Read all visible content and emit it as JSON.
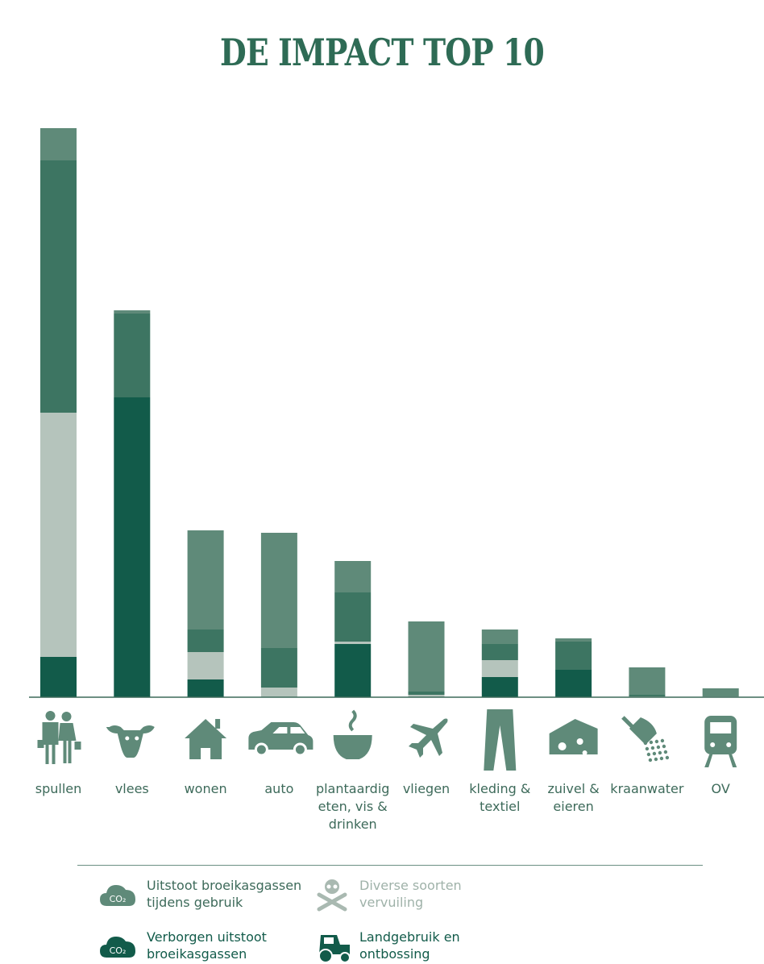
{
  "title": "DE IMPACT TOP 10",
  "colors": {
    "gebruik": "#5f8a79",
    "verborgen": "#3d7562",
    "vervuiling": "#b5c4bc",
    "landgebruik": "#125b4a",
    "axis": "#3d6a5a",
    "label": "#3d6a5a"
  },
  "chart_data": {
    "type": "bar",
    "stacked": true,
    "title": "DE IMPACT TOP 10",
    "categories": [
      "spullen",
      "vlees",
      "wonen",
      "auto",
      "plantaardig eten, vis & drinken",
      "vliegen",
      "kleding & textiel",
      "zuivel & eieren",
      "kraanwater",
      "OV"
    ],
    "series": [
      {
        "name": "Landgebruik en ontbossing",
        "key": "landgebruik",
        "values": [
          50,
          372,
          22,
          0,
          66,
          0,
          25,
          34,
          0,
          0
        ]
      },
      {
        "name": "Diverse soorten vervuiling",
        "key": "vervuiling",
        "values": [
          303,
          0,
          34,
          12,
          3,
          3,
          21,
          0,
          1,
          1
        ]
      },
      {
        "name": "Verborgen uitstoot broeikasgassen",
        "key": "verborgen",
        "values": [
          313,
          104,
          28,
          49,
          61,
          4,
          20,
          35,
          2,
          0
        ]
      },
      {
        "name": "Uitstoot broeikasgassen tijdens gebruik",
        "key": "gebruik",
        "values": [
          40,
          4,
          123,
          143,
          39,
          87,
          18,
          4,
          34,
          10
        ]
      }
    ],
    "ylim": [
      0,
      720
    ],
    "xlabel": "",
    "ylabel": "",
    "grid": false,
    "legend": "bottom"
  },
  "legend": [
    {
      "icon": "co2-cloud-light-icon",
      "lines": [
        "Uitstoot broeikasgassen",
        "tijdens gebruik"
      ],
      "color": "#5f8a79",
      "text_color": "#3d6a5a"
    },
    {
      "icon": "skull-crossbones-icon",
      "lines": [
        "Diverse soorten",
        "vervuiling"
      ],
      "color": "#a9b9b1",
      "text_color": "#9fb2a9"
    },
    {
      "icon": "co2-cloud-dark-icon",
      "lines": [
        "Verborgen uitstoot",
        "broeikasgassen"
      ],
      "color": "#125b4a",
      "text_color": "#125b4a"
    },
    {
      "icon": "tractor-icon",
      "lines": [
        "Landgebruik en",
        "ontbossing"
      ],
      "color": "#125b4a",
      "text_color": "#125b4a"
    }
  ],
  "category_icons": [
    "shoppers-icon",
    "cow-icon",
    "house-icon",
    "car-icon",
    "steaming-bowl-icon",
    "airplane-icon",
    "trousers-icon",
    "cheese-icon",
    "shower-icon",
    "train-icon"
  ]
}
